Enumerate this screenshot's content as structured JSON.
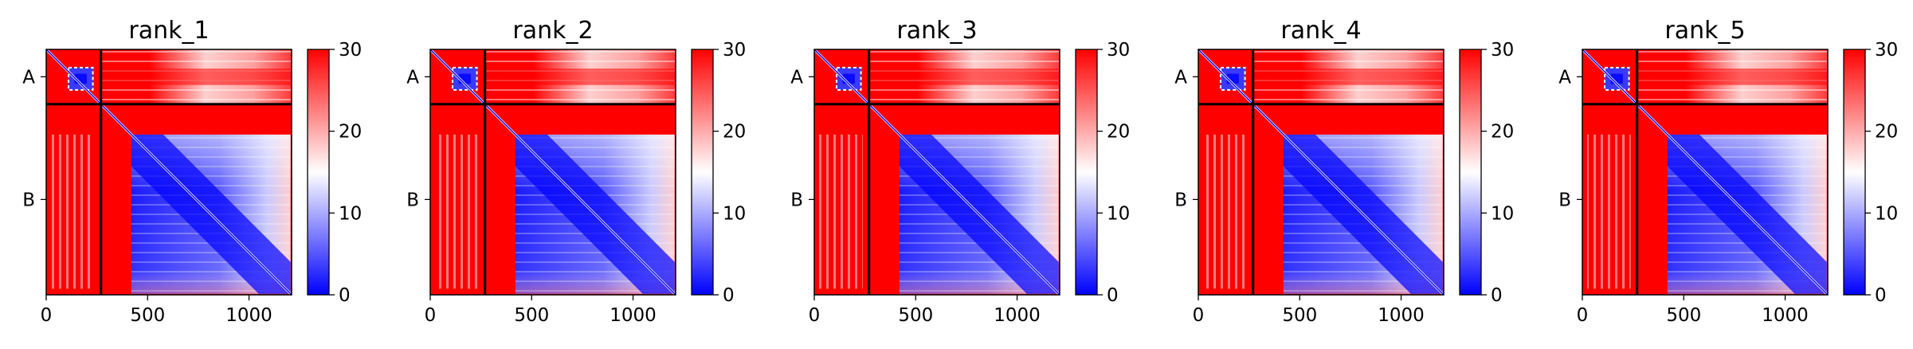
{
  "chart_data": [
    {
      "type": "heatmap",
      "title": "rank_1",
      "x_ticks": [
        0,
        500,
        1000
      ],
      "y_ticks": [
        "A",
        "B"
      ],
      "chain_boundary": 270,
      "length": 1210,
      "colorbar": {
        "min": 0,
        "max": 30,
        "ticks": [
          0,
          10,
          20,
          30
        ],
        "colors": [
          "#0000ff",
          "#ffffff",
          "#ff0000"
        ]
      }
    },
    {
      "type": "heatmap",
      "title": "rank_2",
      "x_ticks": [
        0,
        500,
        1000
      ],
      "y_ticks": [
        "A",
        "B"
      ],
      "chain_boundary": 270,
      "length": 1210,
      "colorbar": {
        "min": 0,
        "max": 30,
        "ticks": [
          0,
          10,
          20,
          30
        ],
        "colors": [
          "#0000ff",
          "#ffffff",
          "#ff0000"
        ]
      }
    },
    {
      "type": "heatmap",
      "title": "rank_3",
      "x_ticks": [
        0,
        500,
        1000
      ],
      "y_ticks": [
        "A",
        "B"
      ],
      "chain_boundary": 270,
      "length": 1210,
      "colorbar": {
        "min": 0,
        "max": 30,
        "ticks": [
          0,
          10,
          20,
          30
        ],
        "colors": [
          "#0000ff",
          "#ffffff",
          "#ff0000"
        ]
      }
    },
    {
      "type": "heatmap",
      "title": "rank_4",
      "x_ticks": [
        0,
        500,
        1000
      ],
      "y_ticks": [
        "A",
        "B"
      ],
      "chain_boundary": 270,
      "length": 1210,
      "colorbar": {
        "min": 0,
        "max": 30,
        "ticks": [
          0,
          10,
          20,
          30
        ],
        "colors": [
          "#0000ff",
          "#ffffff",
          "#ff0000"
        ]
      }
    },
    {
      "type": "heatmap",
      "title": "rank_5",
      "x_ticks": [
        0,
        500,
        1000
      ],
      "y_ticks": [
        "A",
        "B"
      ],
      "chain_boundary": 270,
      "length": 1210,
      "colorbar": {
        "min": 0,
        "max": 30,
        "ticks": [
          0,
          10,
          20,
          30
        ],
        "colors": [
          "#0000ff",
          "#ffffff",
          "#ff0000"
        ]
      }
    }
  ]
}
